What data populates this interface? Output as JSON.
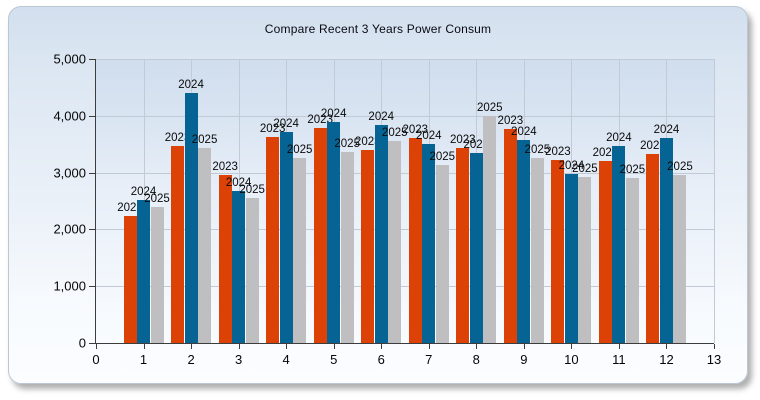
{
  "window": {
    "title": "Compare Recent 3 Years Power Consum"
  },
  "chart_data": {
    "type": "bar",
    "title": "Compare Recent 3 Years Power Consum",
    "xlabel": "",
    "ylabel": "",
    "xlim": [
      0,
      13
    ],
    "ylim": [
      0,
      5000
    ],
    "grid": true,
    "legend_position": "none",
    "bar_label_mode": "series-name-above-each-bar",
    "categories": [
      1,
      2,
      3,
      4,
      5,
      6,
      7,
      8,
      9,
      10,
      11,
      12
    ],
    "x_tick_labels": [
      "0",
      "1",
      "2",
      "3",
      "4",
      "5",
      "6",
      "7",
      "8",
      "9",
      "10",
      "11",
      "12",
      "13"
    ],
    "x_tick_values": [
      0,
      1,
      2,
      3,
      4,
      5,
      6,
      7,
      8,
      9,
      10,
      11,
      12,
      13
    ],
    "y_tick_labels": [
      "0",
      "1,000",
      "2,000",
      "3,000",
      "4,000",
      "5,000"
    ],
    "y_tick_values": [
      0,
      1000,
      2000,
      3000,
      4000,
      5000
    ],
    "series": [
      {
        "name": "2023",
        "color": "#dc4206",
        "values": [
          2230,
          3460,
          2960,
          3620,
          3790,
          3400,
          3610,
          3440,
          3760,
          3230,
          3200,
          3330
        ]
      },
      {
        "name": "2024",
        "color": "#056494",
        "values": [
          2510,
          4400,
          2670,
          3710,
          3890,
          3840,
          3500,
          3340,
          3580,
          2980,
          3460,
          3610
        ]
      },
      {
        "name": "2025",
        "color": "#bfbfc1",
        "values": [
          2390,
          3440,
          2560,
          3260,
          3360,
          3560,
          3140,
          4000,
          3260,
          2920,
          2900,
          2960
        ]
      }
    ],
    "colors": {
      "grid": "#c2cad7",
      "axis": "#3d3d3d",
      "text": "#050505",
      "panel_top": "#d2dfee",
      "panel_bottom": "#fbfdff"
    }
  }
}
